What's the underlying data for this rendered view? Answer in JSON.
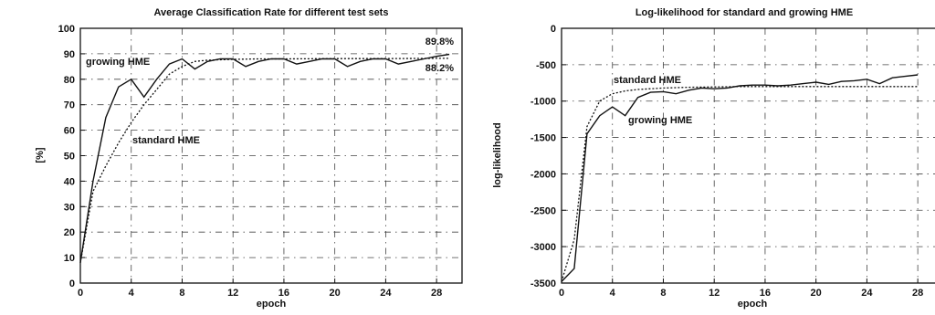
{
  "chart_data": [
    {
      "type": "line",
      "title": "Average Classification Rate for different test sets",
      "xlabel": "epoch",
      "ylabel": "[%]",
      "xlim": [
        0,
        30
      ],
      "ylim": [
        0,
        100
      ],
      "xticks": [
        0,
        4,
        8,
        12,
        16,
        20,
        24,
        28
      ],
      "yticks": [
        0,
        10,
        20,
        30,
        40,
        50,
        60,
        70,
        80,
        90,
        100
      ],
      "grid": true,
      "series": [
        {
          "name": "growing HME",
          "style": "solid",
          "x": [
            0,
            1,
            2,
            3,
            4,
            5,
            6,
            7,
            8,
            9,
            10,
            11,
            12,
            13,
            14,
            15,
            16,
            17,
            18,
            19,
            20,
            21,
            22,
            23,
            24,
            25,
            26,
            27,
            28,
            29
          ],
          "y": [
            8,
            40,
            65,
            77,
            80,
            73,
            80,
            86,
            88,
            84,
            87,
            88,
            88,
            85,
            87,
            88,
            88,
            86,
            87,
            88,
            88,
            85,
            87,
            88,
            88,
            86,
            87,
            88,
            89,
            89.8
          ]
        },
        {
          "name": "standard HME",
          "style": "dotted",
          "x": [
            0,
            1,
            2,
            3,
            4,
            5,
            6,
            7,
            8,
            9,
            10,
            12,
            14,
            16,
            20,
            24,
            28,
            29
          ],
          "y": [
            8,
            36,
            46,
            55,
            63,
            70,
            76,
            82,
            85,
            87,
            87.5,
            87.8,
            88,
            88,
            88.1,
            88.1,
            88.2,
            88.2
          ]
        }
      ],
      "annotations": [
        "growing HME",
        "standard HME",
        "89.8%",
        "88.2%"
      ]
    },
    {
      "type": "line",
      "title": "Log-likelihood for standard and growing HME",
      "xlabel": "epoch",
      "ylabel": "log-likelihood",
      "xlim": [
        0,
        30
      ],
      "ylim": [
        -3500,
        0
      ],
      "xticks": [
        0,
        4,
        8,
        12,
        16,
        20,
        24,
        28
      ],
      "yticks": [
        0,
        -500,
        -1000,
        -1500,
        -2000,
        -2500,
        -3000,
        -3500
      ],
      "grid": true,
      "series": [
        {
          "name": "growing HME",
          "style": "solid",
          "x": [
            0,
            1,
            2,
            3,
            4,
            5,
            6,
            7,
            8,
            9,
            10,
            11,
            12,
            13,
            14,
            15,
            16,
            17,
            18,
            19,
            20,
            21,
            22,
            23,
            24,
            25,
            26,
            27,
            28
          ],
          "y": [
            -3480,
            -3300,
            -1450,
            -1200,
            -1080,
            -1200,
            -950,
            -880,
            -870,
            -900,
            -850,
            -820,
            -830,
            -820,
            -790,
            -780,
            -780,
            -790,
            -780,
            -760,
            -740,
            -770,
            -730,
            -720,
            -700,
            -760,
            -680,
            -660,
            -640
          ]
        },
        {
          "name": "standard HME",
          "style": "dotted",
          "x": [
            0,
            1,
            2,
            3,
            4,
            5,
            6,
            7,
            8,
            10,
            12,
            14,
            16,
            20,
            24,
            28
          ],
          "y": [
            -3480,
            -2900,
            -1350,
            -1000,
            -900,
            -860,
            -840,
            -830,
            -820,
            -810,
            -805,
            -800,
            -800,
            -800,
            -800,
            -800
          ]
        }
      ],
      "annotations": [
        "standard HME",
        "growing HME"
      ]
    }
  ]
}
